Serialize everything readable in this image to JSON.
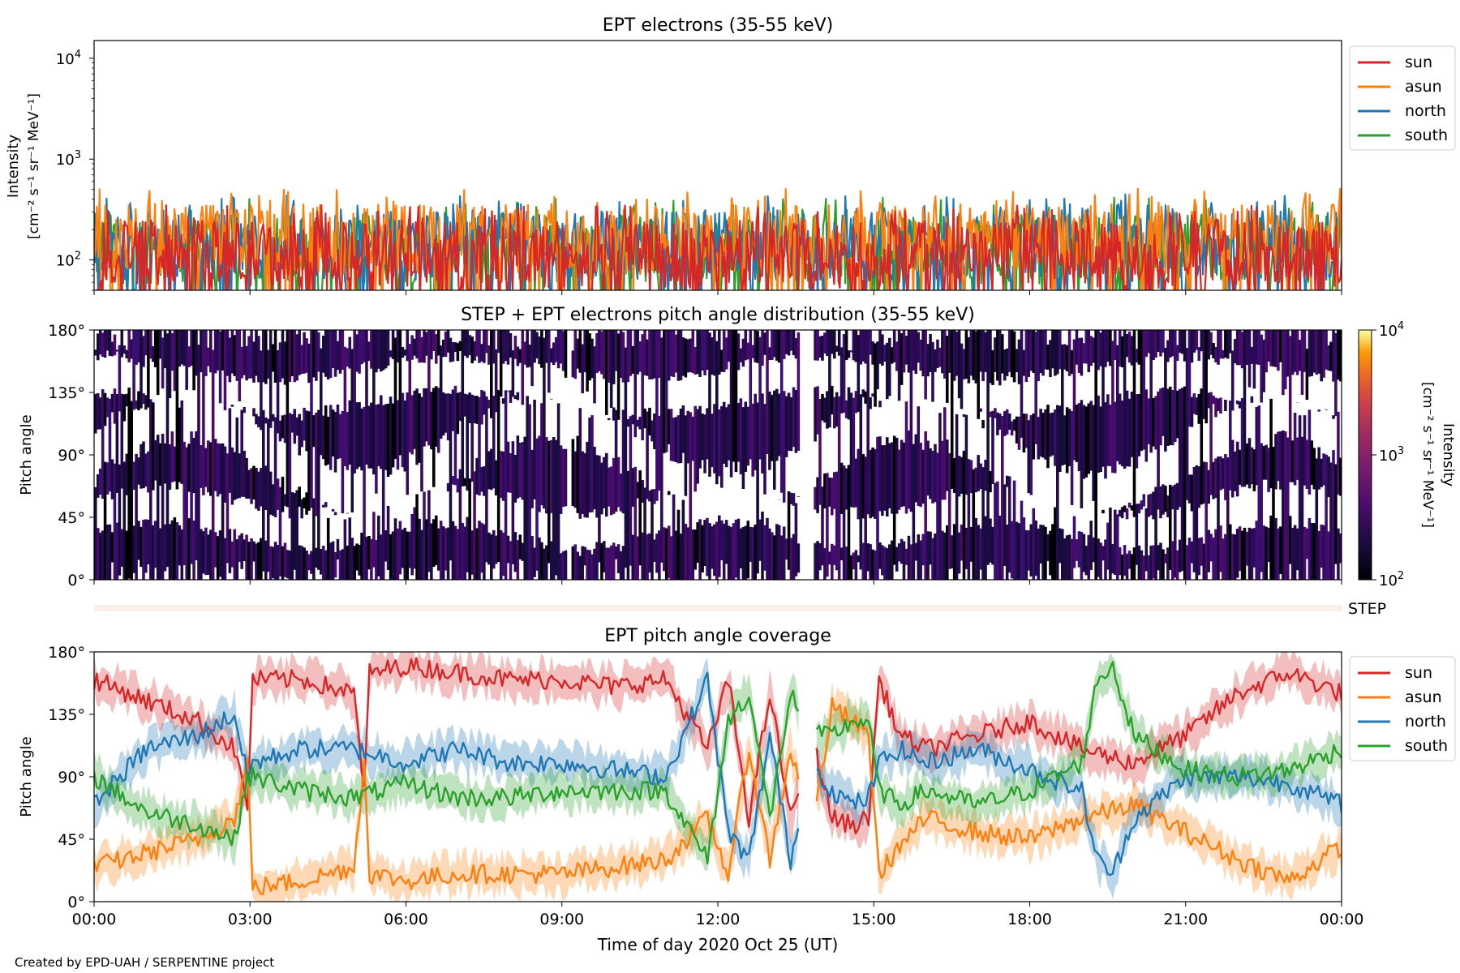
{
  "chart_data": [
    {
      "type": "line",
      "title": "EPT electrons (35-55 keV)",
      "ylabel_line1": "Intensity",
      "ylabel_line2": "[cm⁻² s⁻¹ sr⁻¹ MeV⁻¹]",
      "yscale": "log",
      "ylim": [
        50,
        15000
      ],
      "yticks": [
        {
          "value": 100,
          "base": "10",
          "exp": "2"
        },
        {
          "value": 1000,
          "base": "10",
          "exp": "3"
        },
        {
          "value": 10000,
          "base": "10",
          "exp": "4"
        }
      ],
      "x_range_hours": [
        0,
        24
      ],
      "legend_position": "outside-right-top",
      "series": [
        {
          "name": "sun",
          "color": "#d62728",
          "typical": 110,
          "peak": 420
        },
        {
          "name": "asun",
          "color": "#ff7f0e",
          "typical": 160,
          "peak": 640
        },
        {
          "name": "north",
          "color": "#1f77b4",
          "typical": 140,
          "peak": 650
        },
        {
          "name": "south",
          "color": "#2ca02c",
          "typical": 130,
          "peak": 700
        }
      ]
    },
    {
      "type": "heatmap",
      "title": "STEP + EPT electrons pitch angle distribution (35-55 keV)",
      "ylabel": "Pitch angle",
      "ylim": [
        0,
        180
      ],
      "yticks": [
        "0°",
        "45°",
        "90°",
        "135°",
        "180°"
      ],
      "colorbar": {
        "label_line1": "Intensity",
        "label_line2": "[cm⁻² s⁻¹ sr⁻¹ MeV⁻¹]",
        "scale": "log",
        "range": [
          100,
          10000
        ],
        "ticks": [
          {
            "value": 100,
            "base": "10",
            "exp": "2"
          },
          {
            "value": 1000,
            "base": "10",
            "exp": "3"
          },
          {
            "value": 10000,
            "base": "10",
            "exp": "4"
          }
        ],
        "colormap": "inferno"
      },
      "data_gaps_hours": [
        [
          9.1,
          9.2
        ],
        [
          13.55,
          13.85
        ]
      ]
    },
    {
      "type": "line",
      "title": "",
      "label": "STEP",
      "note": "STEP pitch angle strip (faint band)"
    },
    {
      "type": "line",
      "title": "EPT pitch angle coverage",
      "ylabel": "Pitch angle",
      "xlabel": "Time of day 2020 Oct 25 (UT)",
      "ylim": [
        0,
        180
      ],
      "yticks": [
        "0°",
        "45°",
        "90°",
        "135°",
        "180°"
      ],
      "xticks": [
        "00:00",
        "03:00",
        "06:00",
        "09:00",
        "12:00",
        "15:00",
        "18:00",
        "21:00",
        "00:00"
      ],
      "legend_position": "outside-right-top",
      "series": [
        {
          "name": "sun",
          "color": "#d62728",
          "anchors": [
            [
              0,
              160
            ],
            [
              1,
              145
            ],
            [
              2,
              130
            ],
            [
              2.7,
              110
            ],
            [
              2.95,
              70
            ],
            [
              3.05,
              160
            ],
            [
              4,
              160
            ],
            [
              5,
              150
            ],
            [
              5.2,
              80
            ],
            [
              5.3,
              165
            ],
            [
              6,
              170
            ],
            [
              7,
              165
            ],
            [
              8,
              160
            ],
            [
              9,
              160
            ],
            [
              10,
              155
            ],
            [
              11,
              160
            ],
            [
              11.8,
              110
            ],
            [
              12.2,
              160
            ],
            [
              12.6,
              60
            ],
            [
              13,
              150
            ],
            [
              13.4,
              60
            ],
            [
              13.8,
              120
            ],
            [
              14.2,
              60
            ],
            [
              14.6,
              55
            ],
            [
              14.9,
              60
            ],
            [
              15.1,
              160
            ],
            [
              15.5,
              120
            ],
            [
              16,
              110
            ],
            [
              17,
              120
            ],
            [
              18,
              130
            ],
            [
              19,
              110
            ],
            [
              20,
              100
            ],
            [
              21,
              120
            ],
            [
              22,
              150
            ],
            [
              23,
              165
            ],
            [
              24,
              150
            ]
          ]
        },
        {
          "name": "asun",
          "color": "#ff7f0e",
          "anchors": [
            [
              0,
              25
            ],
            [
              1,
              35
            ],
            [
              2,
              45
            ],
            [
              2.7,
              60
            ],
            [
              2.95,
              100
            ],
            [
              3.05,
              10
            ],
            [
              4,
              15
            ],
            [
              5,
              25
            ],
            [
              5.2,
              100
            ],
            [
              5.3,
              20
            ],
            [
              6,
              15
            ],
            [
              7,
              20
            ],
            [
              8,
              20
            ],
            [
              9,
              20
            ],
            [
              10,
              25
            ],
            [
              11,
              30
            ],
            [
              11.8,
              60
            ],
            [
              12.2,
              20
            ],
            [
              12.6,
              110
            ],
            [
              13,
              30
            ],
            [
              13.4,
              110
            ],
            [
              13.8,
              50
            ],
            [
              14.2,
              140
            ],
            [
              14.6,
              130
            ],
            [
              14.9,
              120
            ],
            [
              15.1,
              20
            ],
            [
              15.5,
              40
            ],
            [
              16,
              60
            ],
            [
              17,
              50
            ],
            [
              18,
              45
            ],
            [
              19,
              60
            ],
            [
              20,
              70
            ],
            [
              21,
              50
            ],
            [
              22,
              30
            ],
            [
              23,
              15
            ],
            [
              24,
              40
            ]
          ]
        },
        {
          "name": "north",
          "color": "#1f77b4",
          "anchors": [
            [
              0,
              70
            ],
            [
              1,
              110
            ],
            [
              2,
              120
            ],
            [
              2.7,
              135
            ],
            [
              2.95,
              90
            ],
            [
              3.05,
              100
            ],
            [
              4,
              110
            ],
            [
              5,
              110
            ],
            [
              6,
              100
            ],
            [
              7,
              110
            ],
            [
              8,
              100
            ],
            [
              9,
              100
            ],
            [
              10,
              95
            ],
            [
              11,
              90
            ],
            [
              11.8,
              160
            ],
            [
              12.2,
              50
            ],
            [
              12.6,
              30
            ],
            [
              13,
              120
            ],
            [
              13.4,
              30
            ],
            [
              13.8,
              100
            ],
            [
              14.2,
              80
            ],
            [
              14.6,
              70
            ],
            [
              14.9,
              75
            ],
            [
              15.1,
              100
            ],
            [
              15.5,
              110
            ],
            [
              16,
              100
            ],
            [
              17,
              110
            ],
            [
              18,
              95
            ],
            [
              19,
              80
            ],
            [
              19.3,
              30
            ],
            [
              19.6,
              20
            ],
            [
              20,
              60
            ],
            [
              21,
              90
            ],
            [
              22,
              90
            ],
            [
              23,
              85
            ],
            [
              24,
              70
            ]
          ]
        },
        {
          "name": "south",
          "color": "#2ca02c",
          "anchors": [
            [
              0,
              90
            ],
            [
              1,
              65
            ],
            [
              2,
              55
            ],
            [
              2.7,
              45
            ],
            [
              2.95,
              90
            ],
            [
              3.05,
              90
            ],
            [
              4,
              80
            ],
            [
              5,
              75
            ],
            [
              6,
              85
            ],
            [
              7,
              75
            ],
            [
              8,
              75
            ],
            [
              9,
              80
            ],
            [
              10,
              80
            ],
            [
              11,
              80
            ],
            [
              11.8,
              30
            ],
            [
              12.2,
              130
            ],
            [
              12.6,
              150
            ],
            [
              13,
              60
            ],
            [
              13.4,
              150
            ],
            [
              13.8,
              120
            ],
            [
              14.2,
              120
            ],
            [
              14.6,
              130
            ],
            [
              14.9,
              130
            ],
            [
              15.1,
              80
            ],
            [
              15.5,
              70
            ],
            [
              16,
              80
            ],
            [
              17,
              70
            ],
            [
              18,
              80
            ],
            [
              19,
              100
            ],
            [
              19.3,
              160
            ],
            [
              19.6,
              170
            ],
            [
              20,
              120
            ],
            [
              21,
              95
            ],
            [
              22,
              90
            ],
            [
              23,
              95
            ],
            [
              24,
              110
            ]
          ]
        }
      ]
    }
  ],
  "footer": {
    "credit": "Created by EPD-UAH / SERPENTINE project"
  }
}
